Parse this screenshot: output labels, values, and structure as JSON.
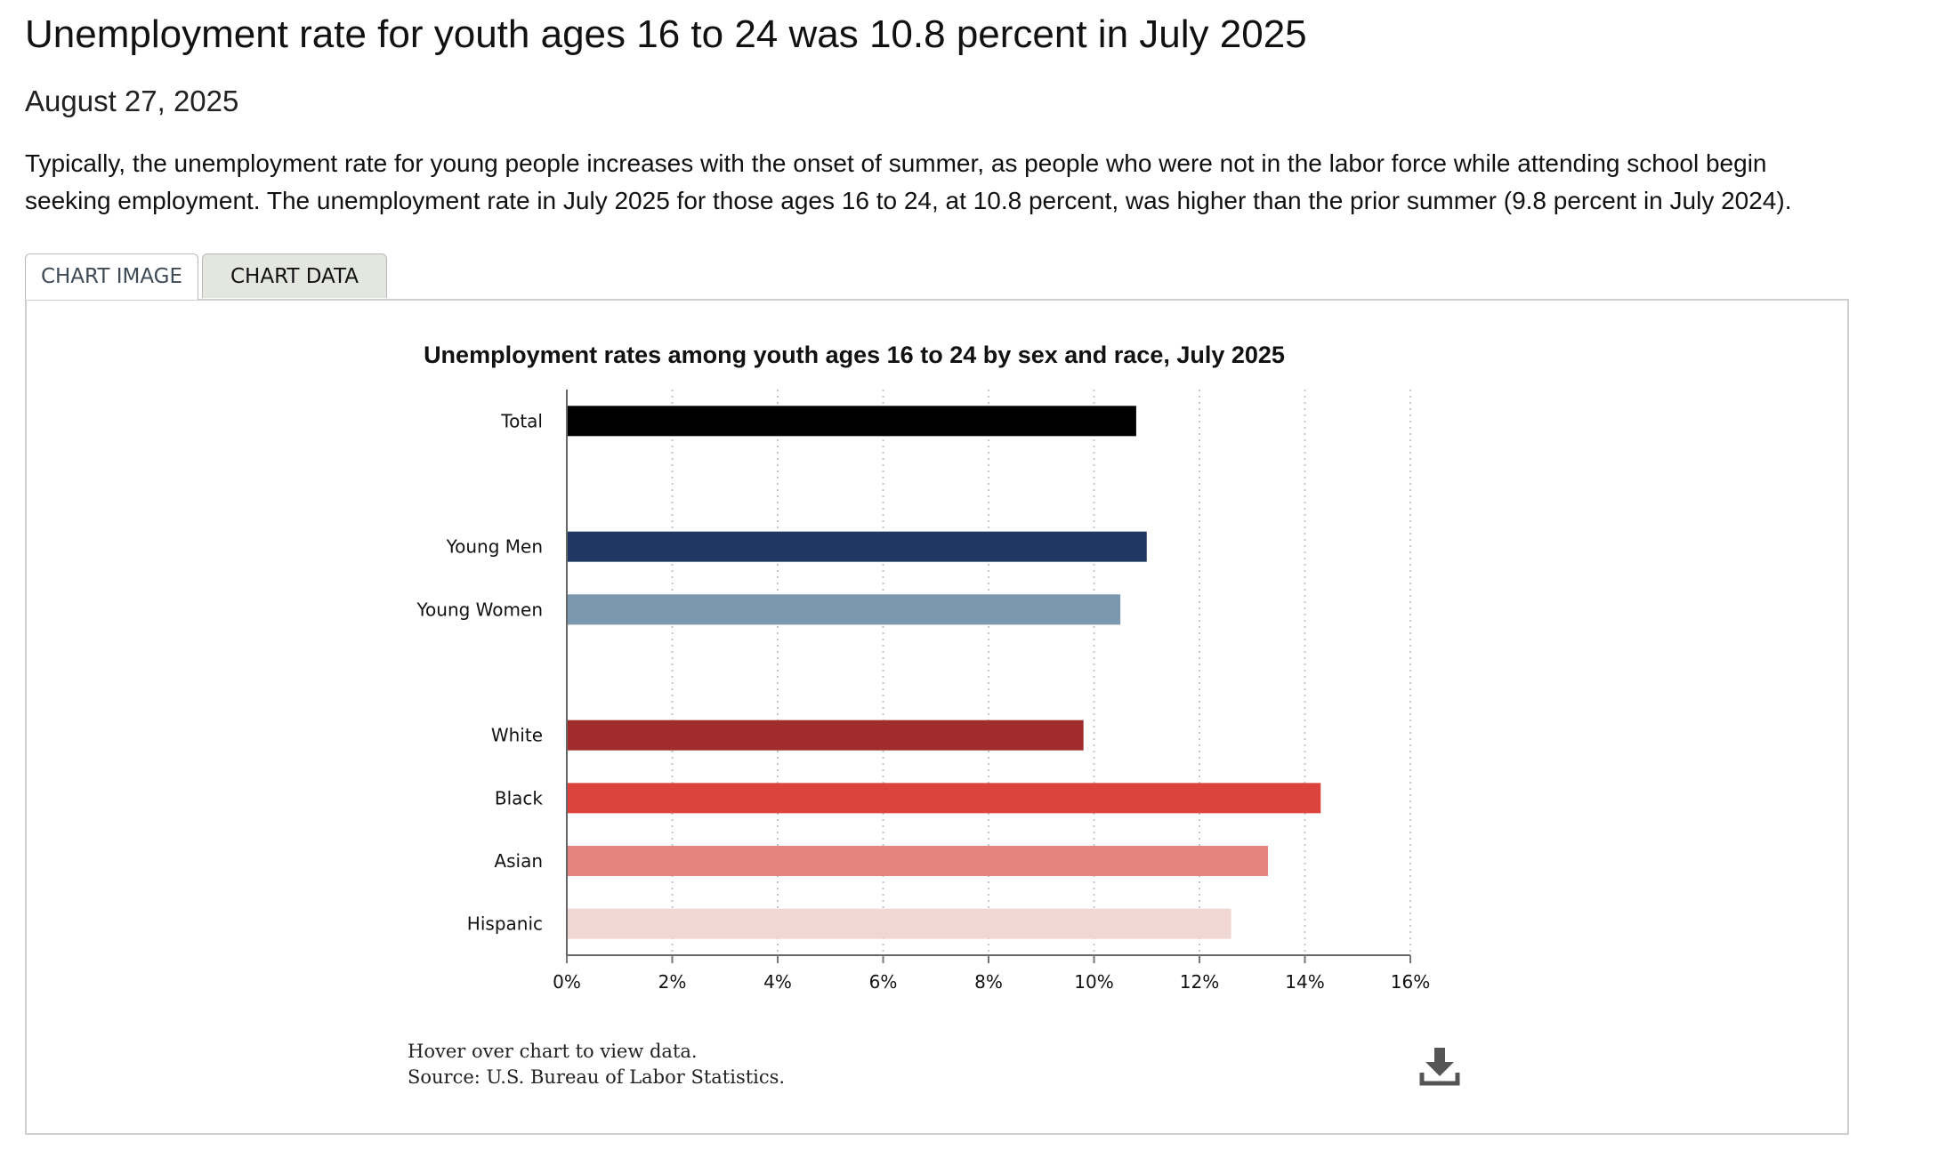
{
  "page": {
    "headline": "Unemployment rate for youth ages 16 to 24 was 10.8 percent in July 2025",
    "date": "August 27, 2025",
    "lede": "Typically, the unemployment rate for young people increases with the onset of summer, as people who were not in the labor force while attending school begin seeking employment. The unemployment rate in July 2025 for those ages 16 to 24, at 10.8 percent, was higher than the prior summer (9.8 percent in July 2024)."
  },
  "tabs": {
    "chart_image": "CHART IMAGE",
    "chart_data": "CHART DATA"
  },
  "chart_data": {
    "type": "bar",
    "orientation": "horizontal",
    "title": "Unemployment rates among youth ages 16 to 24 by sex and race, July 2025",
    "xlabel": "",
    "ylabel": "",
    "xlim": [
      0,
      16
    ],
    "tick_step": 2,
    "tick_suffix": "%",
    "grid": "vertical dotted",
    "categories": [
      "Total",
      "",
      "Young Men",
      "Young Women",
      "",
      "White",
      "Black",
      "Asian",
      "Hispanic"
    ],
    "values": [
      10.8,
      null,
      11.0,
      10.5,
      null,
      9.8,
      14.3,
      13.3,
      12.6
    ],
    "colors": [
      "#000000",
      null,
      "#213763",
      "#7a98b0",
      null,
      "#a02c2c",
      "#dc433c",
      "#e3847f",
      "#f1d7d3"
    ]
  },
  "footer": {
    "hover_note": "Hover over chart to view data.",
    "source": "Source: U.S. Bureau of Labor Statistics."
  },
  "icons": {
    "download": "download-icon"
  }
}
